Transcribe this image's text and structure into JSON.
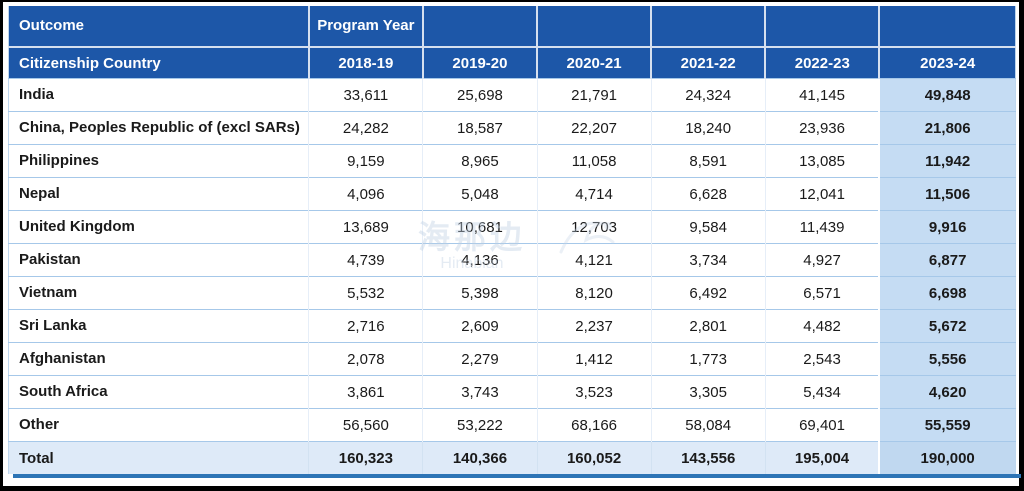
{
  "table": {
    "corner_label": "Outcome",
    "program_year_label": "Program Year",
    "row_header_label": "Citizenship Country",
    "years": [
      "2018-19",
      "2019-20",
      "2020-21",
      "2021-22",
      "2022-23",
      "2023-24"
    ],
    "rows": [
      {
        "country": "India",
        "values": [
          "33,611",
          "25,698",
          "21,791",
          "24,324",
          "41,145",
          "49,848"
        ]
      },
      {
        "country": "China, Peoples Republic of (excl SARs)",
        "values": [
          "24,282",
          "18,587",
          "22,207",
          "18,240",
          "23,936",
          "21,806"
        ]
      },
      {
        "country": "Philippines",
        "values": [
          "9,159",
          "8,965",
          "11,058",
          "8,591",
          "13,085",
          "11,942"
        ]
      },
      {
        "country": "Nepal",
        "values": [
          "4,096",
          "5,048",
          "4,714",
          "6,628",
          "12,041",
          "11,506"
        ]
      },
      {
        "country": "United Kingdom",
        "values": [
          "13,689",
          "10,681",
          "12,703",
          "9,584",
          "11,439",
          "9,916"
        ]
      },
      {
        "country": "Pakistan",
        "values": [
          "4,739",
          "4,136",
          "4,121",
          "3,734",
          "4,927",
          "6,877"
        ]
      },
      {
        "country": "Vietnam",
        "values": [
          "5,532",
          "5,398",
          "8,120",
          "6,492",
          "6,571",
          "6,698"
        ]
      },
      {
        "country": "Sri Lanka",
        "values": [
          "2,716",
          "2,609",
          "2,237",
          "2,801",
          "4,482",
          "5,672"
        ]
      },
      {
        "country": "Afghanistan",
        "values": [
          "2,078",
          "2,279",
          "1,412",
          "1,773",
          "2,543",
          "5,556"
        ]
      },
      {
        "country": "South Africa",
        "values": [
          "3,861",
          "3,743",
          "3,523",
          "3,305",
          "5,434",
          "4,620"
        ]
      },
      {
        "country": "Other",
        "values": [
          "56,560",
          "53,222",
          "68,166",
          "58,084",
          "69,401",
          "55,559"
        ]
      }
    ],
    "total": {
      "label": "Total",
      "values": [
        "160,323",
        "140,366",
        "160,052",
        "143,556",
        "195,004",
        "190,000"
      ]
    }
  },
  "watermark": {
    "line1": "海那边",
    "line2": "Hinabian"
  },
  "colors": {
    "header_blue": "#1D57A8",
    "highlight_column": "#C5DCF3",
    "total_row": "#DEEAF8",
    "row_separator": "#A6C8E9",
    "bottom_bar": "#2E75B6"
  },
  "chart_data": {
    "type": "table",
    "title": "Outcome by Program Year",
    "row_header": "Citizenship Country",
    "column_group_header": "Program Year",
    "columns": [
      "2018-19",
      "2019-20",
      "2020-21",
      "2021-22",
      "2022-23",
      "2023-24"
    ],
    "rows": [
      {
        "label": "India",
        "values": [
          33611,
          25698,
          21791,
          24324,
          41145,
          49848
        ]
      },
      {
        "label": "China, Peoples Republic of (excl SARs)",
        "values": [
          24282,
          18587,
          22207,
          18240,
          23936,
          21806
        ]
      },
      {
        "label": "Philippines",
        "values": [
          9159,
          8965,
          11058,
          8591,
          13085,
          11942
        ]
      },
      {
        "label": "Nepal",
        "values": [
          4096,
          5048,
          4714,
          6628,
          12041,
          11506
        ]
      },
      {
        "label": "United Kingdom",
        "values": [
          13689,
          10681,
          12703,
          9584,
          11439,
          9916
        ]
      },
      {
        "label": "Pakistan",
        "values": [
          4739,
          4136,
          4121,
          3734,
          4927,
          6877
        ]
      },
      {
        "label": "Vietnam",
        "values": [
          5532,
          5398,
          8120,
          6492,
          6571,
          6698
        ]
      },
      {
        "label": "Sri Lanka",
        "values": [
          2716,
          2609,
          2237,
          2801,
          4482,
          5672
        ]
      },
      {
        "label": "Afghanistan",
        "values": [
          2078,
          2279,
          1412,
          1773,
          2543,
          5556
        ]
      },
      {
        "label": "South Africa",
        "values": [
          3861,
          3743,
          3523,
          3305,
          5434,
          4620
        ]
      },
      {
        "label": "Other",
        "values": [
          56560,
          53222,
          68166,
          58084,
          69401,
          55559
        ]
      }
    ],
    "total_row": {
      "label": "Total",
      "values": [
        160323,
        140366,
        160052,
        143556,
        195004,
        190000
      ]
    },
    "layout": {
      "highlighted_column": "2023-24",
      "grid": true
    }
  }
}
